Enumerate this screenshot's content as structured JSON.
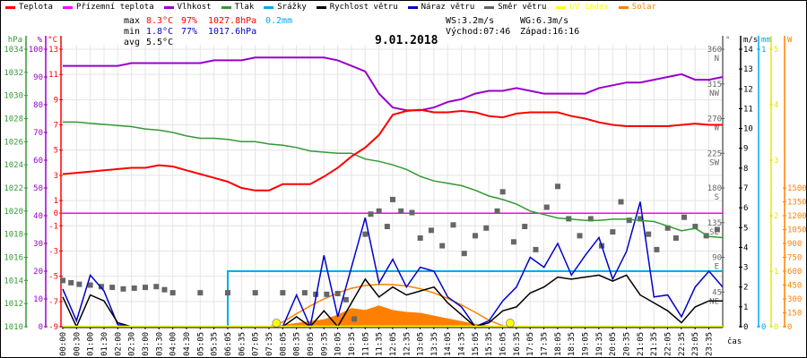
{
  "legend": [
    {
      "label": "Teplota",
      "color": "#ff0000"
    },
    {
      "label": "Přízemní teplota",
      "color": "#ff00ff"
    },
    {
      "label": "Vlhkost",
      "color": "#9900cc"
    },
    {
      "label": "Tlak",
      "color": "#339933"
    },
    {
      "label": "Srážky",
      "color": "#00aaee"
    },
    {
      "label": "Rychlost větru",
      "color": "#000000"
    },
    {
      "label": "Náraz větru",
      "color": "#0000cc"
    },
    {
      "label": "Směr větru",
      "color": "#666666"
    },
    {
      "label": "UV index",
      "color": "#ffff00"
    },
    {
      "label": "Solar",
      "color": "#ff8000"
    }
  ],
  "stats": {
    "max_label": "max",
    "max_temp": "8.3°C",
    "max_hum": "97%",
    "max_press": "1027.8hPa",
    "max_rain": "0.2mm",
    "min_label": "min",
    "min_temp": "1.8°C",
    "min_hum": "77%",
    "min_press": "1017.6hPa",
    "avg_label": "avg",
    "avg_temp": "5.5°C",
    "ws": "WS:3.2m/s",
    "wg": "WG:6.3m/s",
    "sunrise": "Východ:07:46",
    "sunset": "Západ:16:16"
  },
  "chart_data": {
    "type": "line",
    "title": "9.01.2018",
    "xlabel": "čas",
    "x_tick_labels": [
      "00:00",
      "00:30",
      "01:00",
      "01:30",
      "02:00",
      "02:30",
      "03:00",
      "03:30",
      "04:00",
      "04:30",
      "05:05",
      "05:35",
      "06:05",
      "06:35",
      "07:05",
      "07:35",
      "08:05",
      "08:35",
      "09:05",
      "09:35",
      "10:05",
      "10:35",
      "11:05",
      "11:35",
      "12:05",
      "12:35",
      "13:05",
      "13:35",
      "14:05",
      "14:35",
      "15:05",
      "15:35",
      "16:05",
      "16:35",
      "17:05",
      "17:35",
      "18:05",
      "18:35",
      "19:05",
      "19:35",
      "20:05",
      "20:35",
      "21:05",
      "21:35",
      "22:05",
      "22:35",
      "23:05",
      "23:35"
    ],
    "xlim_hours": [
      0,
      24
    ],
    "axes": {
      "pressure": {
        "unit": "hPa",
        "range": [
          1010,
          1034
        ],
        "ticks": [
          "1010",
          "1012",
          "1014",
          "1016",
          "1018",
          "1020",
          "1022",
          "1024",
          "1026",
          "1028",
          "1030",
          "1032",
          "1034"
        ]
      },
      "humidity": {
        "unit": "%",
        "range": [
          0,
          100
        ],
        "ticks": [
          "0",
          "10",
          "20",
          "30",
          "40",
          "50",
          "60",
          "70",
          "80",
          "90",
          "100"
        ]
      },
      "temperature": {
        "unit": "°C",
        "range": [
          -9,
          13
        ],
        "ticks": [
          "13",
          "11",
          "9",
          "7",
          "5",
          "3",
          "1",
          "0",
          "-1",
          "-3",
          "-5",
          "-7",
          "-9"
        ]
      },
      "direction": {
        "unit": "°",
        "range": [
          0,
          360
        ],
        "ticks": [
          "360",
          "315",
          "270",
          "225",
          "180",
          "135",
          "90",
          "45"
        ],
        "names": [
          "N",
          "NW",
          "W",
          "SW",
          "S",
          "SE",
          "E",
          "NE"
        ]
      },
      "wind": {
        "unit": "m/s",
        "range": [
          0,
          14
        ],
        "ticks": [
          "0",
          "1",
          "2",
          "3",
          "4",
          "5",
          "6",
          "7",
          "8",
          "9",
          "10",
          "11",
          "12",
          "13",
          "14"
        ]
      },
      "rain": {
        "unit": "mm",
        "range": [
          0,
          1
        ],
        "ticks": [
          "0",
          "1"
        ]
      },
      "uv": {
        "unit": "",
        "range": [
          0,
          5
        ],
        "ticks": [
          "0",
          "1",
          "2",
          "3",
          "4",
          "5"
        ]
      },
      "solar": {
        "unit": "W",
        "range": [
          0,
          3000
        ],
        "ticks": [
          "0",
          "150",
          "300",
          "450",
          "600",
          "750",
          "900",
          "1050",
          "1200",
          "1350",
          "1500"
        ]
      }
    },
    "x_hours": [
      0,
      0.5,
      1,
      1.5,
      2,
      2.5,
      3,
      3.5,
      4,
      4.5,
      5,
      5.5,
      6,
      6.5,
      7,
      7.5,
      8,
      8.5,
      9,
      9.5,
      10,
      10.5,
      11,
      11.5,
      12,
      12.5,
      13,
      13.5,
      14,
      14.5,
      15,
      15.5,
      16,
      16.5,
      17,
      17.5,
      18,
      18.5,
      19,
      19.5,
      20,
      20.5,
      21,
      21.5,
      22,
      22.5,
      23,
      23.5,
      24
    ],
    "series": [
      {
        "name": "Teplota",
        "unit": "°C",
        "values": [
          3.1,
          3.2,
          3.3,
          3.4,
          3.5,
          3.6,
          3.6,
          3.8,
          3.7,
          3.4,
          3.1,
          2.8,
          2.5,
          2.0,
          1.8,
          1.8,
          2.3,
          2.3,
          2.3,
          2.9,
          3.6,
          4.5,
          5.2,
          6.2,
          7.8,
          8.1,
          8.2,
          8.0,
          8.0,
          8.1,
          8.0,
          7.7,
          7.6,
          7.9,
          8.0,
          8.0,
          8.0,
          7.7,
          7.5,
          7.2,
          7.0,
          6.9,
          6.9,
          6.9,
          6.9,
          7.0,
          7.1,
          7.0,
          7.0
        ]
      },
      {
        "name": "Přízemní teplota",
        "unit": "°C",
        "values": [
          0,
          0,
          0,
          0,
          0,
          0,
          0,
          0,
          0,
          0,
          0,
          0,
          0,
          0,
          0,
          0,
          0,
          0,
          0,
          0,
          0,
          0,
          0,
          0,
          0,
          0,
          0,
          0,
          0,
          0,
          0,
          0,
          0,
          0,
          0,
          0,
          0,
          0,
          0,
          0,
          0,
          0,
          0,
          0,
          0,
          0,
          0,
          0,
          0
        ]
      },
      {
        "name": "Vlhkost",
        "unit": "%",
        "values": [
          94,
          94,
          94,
          94,
          94,
          95,
          95,
          95,
          95,
          95,
          95,
          96,
          96,
          96,
          97,
          97,
          97,
          97,
          97,
          97,
          96,
          94,
          92,
          84,
          79,
          78,
          78,
          79,
          81,
          82,
          84,
          85,
          85,
          86,
          85,
          84,
          84,
          84,
          84,
          86,
          87,
          88,
          88,
          89,
          90,
          91,
          89,
          89,
          90
        ]
      },
      {
        "name": "Tlak",
        "unit": "hPa",
        "values": [
          1027.7,
          1027.7,
          1027.6,
          1027.5,
          1027.4,
          1027.3,
          1027.1,
          1027.0,
          1026.8,
          1026.5,
          1026.3,
          1026.3,
          1026.2,
          1026.0,
          1026.0,
          1025.8,
          1025.7,
          1025.5,
          1025.2,
          1025.1,
          1025.0,
          1025.0,
          1024.5,
          1024.3,
          1024.0,
          1023.6,
          1023.0,
          1022.6,
          1022.4,
          1022.2,
          1021.8,
          1021.3,
          1021.0,
          1020.6,
          1020.0,
          1019.7,
          1019.4,
          1019.3,
          1019.2,
          1019.2,
          1019.3,
          1019.3,
          1019.2,
          1019.1,
          1018.7,
          1018.3,
          1018.5,
          1017.8,
          1017.7
        ]
      },
      {
        "name": "Rychlost větru",
        "unit": "m/s",
        "values": [
          1.5,
          0,
          1.6,
          1.3,
          0.2,
          0,
          0,
          0,
          0,
          0,
          0,
          0,
          0,
          0,
          0,
          0,
          0,
          0.5,
          0,
          0.8,
          0,
          1.2,
          2.4,
          1.5,
          2.0,
          1.6,
          1.8,
          2.0,
          1.2,
          0.6,
          0,
          0.2,
          0.8,
          1.0,
          1.7,
          2.0,
          2.5,
          2.4,
          2.5,
          2.6,
          2.3,
          2.6,
          1.6,
          1.2,
          0.8,
          0.2,
          1.0,
          1.3,
          1.3
        ]
      },
      {
        "name": "Náraz větru",
        "unit": "m/s",
        "values": [
          1.9,
          0.3,
          2.6,
          1.8,
          0.1,
          0,
          0,
          0,
          0,
          0,
          0,
          0,
          0,
          0,
          0,
          0,
          0,
          1.6,
          0,
          3.6,
          0.5,
          3.0,
          5.5,
          2.2,
          3.4,
          2.0,
          3.0,
          2.8,
          1.5,
          1.0,
          0,
          0.3,
          1.3,
          2.0,
          3.5,
          3.0,
          4.2,
          2.6,
          3.6,
          4.5,
          2.4,
          3.8,
          6.3,
          1.5,
          1.6,
          0.5,
          2.0,
          2.8,
          2.0
        ]
      },
      {
        "name": "Srážky",
        "unit": "mm",
        "values": [
          0,
          0,
          0,
          0,
          0,
          0,
          0,
          0,
          0,
          0,
          0,
          0,
          0.2,
          0.2,
          0.2,
          0.2,
          0.2,
          0.2,
          0.2,
          0.2,
          0.2,
          0.2,
          0.2,
          0.2,
          0.2,
          0.2,
          0.2,
          0.2,
          0.2,
          0.2,
          0.2,
          0.2,
          0.2,
          0.2,
          0.2,
          0.2,
          0.2,
          0.2,
          0.2,
          0.2,
          0.2,
          0.2,
          0.2,
          0.2,
          0.2,
          0.2,
          0.2,
          0.2,
          0.2
        ]
      },
      {
        "name": "Solar",
        "unit": "W",
        "values": [
          0,
          0,
          0,
          0,
          0,
          0,
          0,
          0,
          0,
          0,
          0,
          0,
          0,
          0,
          0,
          0,
          20,
          40,
          60,
          80,
          130,
          200,
          180,
          230,
          180,
          160,
          150,
          120,
          90,
          60,
          30,
          15,
          5,
          0,
          0,
          0,
          0,
          0,
          0,
          0,
          0,
          0,
          0,
          0,
          0,
          0,
          0,
          0,
          0
        ]
      },
      {
        "name": "Solar max",
        "unit": "W",
        "values": [
          0,
          0,
          0,
          0,
          0,
          0,
          0,
          0,
          0,
          0,
          0,
          0,
          0,
          0,
          0,
          0,
          50,
          140,
          225,
          300,
          365,
          415,
          445,
          458,
          455,
          440,
          410,
          365,
          305,
          235,
          155,
          70,
          10,
          0,
          0,
          0,
          0,
          0,
          0,
          0,
          0,
          0,
          0,
          0,
          0,
          0,
          0,
          0,
          0
        ]
      },
      {
        "name": "UV index",
        "unit": "",
        "values": [
          0,
          0,
          0,
          0,
          0,
          0,
          0,
          0,
          0,
          0,
          0,
          0,
          0,
          0,
          0,
          0,
          0,
          0,
          0,
          0,
          0,
          0,
          0,
          0,
          0,
          0,
          0,
          0,
          0,
          0,
          0,
          0,
          0,
          0,
          0,
          0,
          0,
          0,
          0,
          0,
          0,
          0,
          0,
          0,
          0,
          0,
          0,
          0,
          0
        ]
      }
    ],
    "wind_direction_points": [
      [
        0,
        60
      ],
      [
        0.3,
        57
      ],
      [
        0.6,
        55
      ],
      [
        1,
        54
      ],
      [
        1.4,
        52
      ],
      [
        1.8,
        51
      ],
      [
        2.2,
        49
      ],
      [
        2.6,
        50
      ],
      [
        3.0,
        51
      ],
      [
        3.4,
        52
      ],
      [
        3.7,
        48
      ],
      [
        4.0,
        44
      ],
      [
        5,
        44
      ],
      [
        6,
        44
      ],
      [
        7,
        44
      ],
      [
        8,
        44
      ],
      [
        8.8,
        44
      ],
      [
        9.2,
        42
      ],
      [
        9.6,
        42
      ],
      [
        10,
        43
      ],
      [
        10.3,
        35
      ],
      [
        10.6,
        10
      ],
      [
        11.0,
        120
      ],
      [
        11.2,
        146
      ],
      [
        11.5,
        150
      ],
      [
        11.8,
        130
      ],
      [
        12.0,
        165
      ],
      [
        12.3,
        150
      ],
      [
        12.7,
        148
      ],
      [
        13.0,
        115
      ],
      [
        13.4,
        125
      ],
      [
        13.8,
        105
      ],
      [
        14.2,
        132
      ],
      [
        14.6,
        95
      ],
      [
        15.0,
        118
      ],
      [
        15.4,
        128
      ],
      [
        15.8,
        150
      ],
      [
        16.0,
        175
      ],
      [
        16.4,
        110
      ],
      [
        16.8,
        130
      ],
      [
        17.2,
        100
      ],
      [
        17.6,
        155
      ],
      [
        18.0,
        182
      ],
      [
        18.4,
        140
      ],
      [
        18.8,
        118
      ],
      [
        19.2,
        140
      ],
      [
        19.6,
        105
      ],
      [
        20.0,
        123
      ],
      [
        20.3,
        162
      ],
      [
        20.6,
        138
      ],
      [
        21.0,
        140
      ],
      [
        21.3,
        120
      ],
      [
        21.6,
        100
      ],
      [
        22.0,
        128
      ],
      [
        22.3,
        115
      ],
      [
        22.6,
        142
      ],
      [
        23.0,
        130
      ],
      [
        23.4,
        118
      ],
      [
        23.8,
        126
      ]
    ],
    "sunrise_hours": 7.77,
    "sunset_hours": 16.27
  }
}
